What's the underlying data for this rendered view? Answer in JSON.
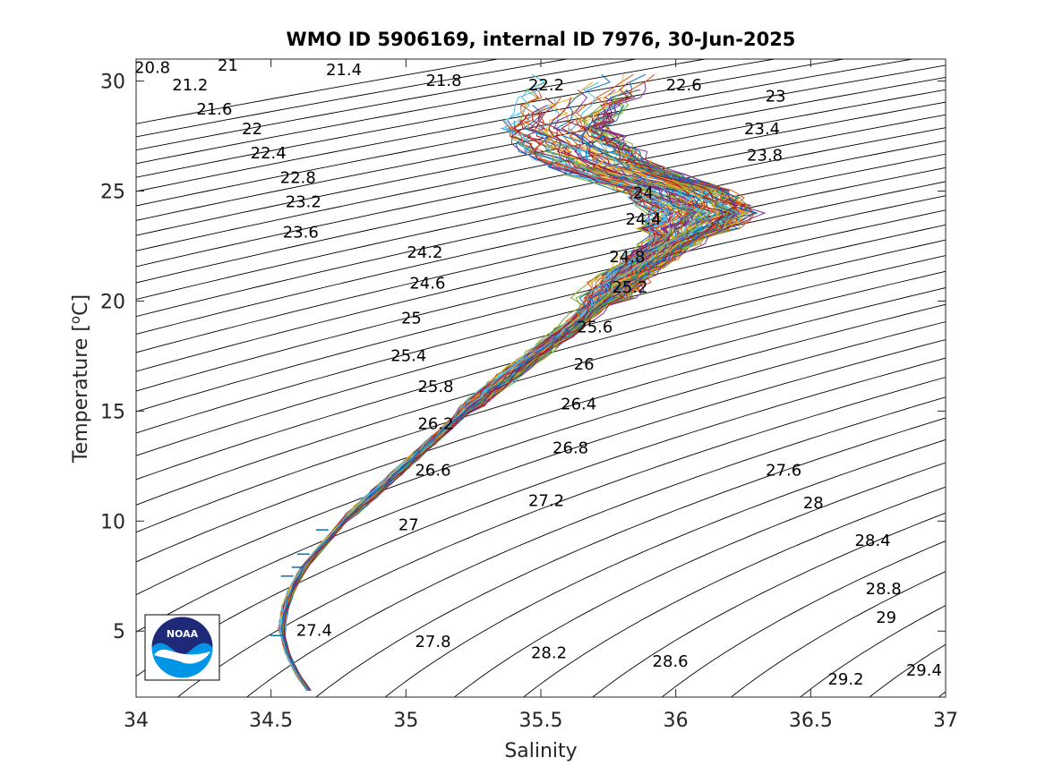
{
  "chart_data": {
    "type": "line",
    "title": "WMO ID 5906169, internal ID 7976, 30-Jun-2025",
    "xlabel": "Salinity",
    "ylabel_text": "Temperature [",
    "ylabel_sup": "o",
    "ylabel_unit": "C]",
    "xlim": [
      34,
      37
    ],
    "ylim": [
      2,
      31
    ],
    "x_ticks": [
      {
        "value": 34,
        "label": "34"
      },
      {
        "value": 34.5,
        "label": "34.5"
      },
      {
        "value": 35,
        "label": "35"
      },
      {
        "value": 35.5,
        "label": "35.5"
      },
      {
        "value": 36,
        "label": "36"
      },
      {
        "value": 36.5,
        "label": "36.5"
      },
      {
        "value": 37,
        "label": "37"
      }
    ],
    "y_ticks": [
      {
        "value": 5,
        "label": "5"
      },
      {
        "value": 10,
        "label": "10"
      },
      {
        "value": 15,
        "label": "15"
      },
      {
        "value": 20,
        "label": "20"
      },
      {
        "value": 25,
        "label": "25"
      },
      {
        "value": 30,
        "label": "30"
      }
    ],
    "grid": false,
    "contour_levels": {
      "start": 20.8,
      "end": 29.6,
      "step": 0.2
    },
    "contour_labels": [
      {
        "text": "20.8",
        "s": 34.06,
        "t": 30.6
      },
      {
        "text": "21",
        "s": 34.34,
        "t": 30.7
      },
      {
        "text": "21.4",
        "s": 34.77,
        "t": 30.5
      },
      {
        "text": "21.8",
        "s": 35.14,
        "t": 30.0
      },
      {
        "text": "22.2",
        "s": 35.52,
        "t": 29.8
      },
      {
        "text": "22.6",
        "s": 36.03,
        "t": 29.8
      },
      {
        "text": "23",
        "s": 36.37,
        "t": 29.3
      },
      {
        "text": "21.2",
        "s": 34.2,
        "t": 29.8
      },
      {
        "text": "21.6",
        "s": 34.29,
        "t": 28.7
      },
      {
        "text": "22",
        "s": 34.43,
        "t": 27.8
      },
      {
        "text": "23.4",
        "s": 36.32,
        "t": 27.8
      },
      {
        "text": "22.4",
        "s": 34.49,
        "t": 26.7
      },
      {
        "text": "23.8",
        "s": 36.33,
        "t": 26.6
      },
      {
        "text": "22.8",
        "s": 34.6,
        "t": 25.6
      },
      {
        "text": "23.2",
        "s": 34.62,
        "t": 24.5
      },
      {
        "text": "24",
        "s": 35.88,
        "t": 24.9
      },
      {
        "text": "23.6",
        "s": 34.61,
        "t": 23.1
      },
      {
        "text": "24.4",
        "s": 35.88,
        "t": 23.7
      },
      {
        "text": "24.2",
        "s": 35.07,
        "t": 22.2
      },
      {
        "text": "24.8",
        "s": 35.82,
        "t": 22.0
      },
      {
        "text": "24.6",
        "s": 35.08,
        "t": 20.8
      },
      {
        "text": "25.2",
        "s": 35.83,
        "t": 20.6
      },
      {
        "text": "25",
        "s": 35.02,
        "t": 19.2
      },
      {
        "text": "25.6",
        "s": 35.7,
        "t": 18.8
      },
      {
        "text": "25.4",
        "s": 35.01,
        "t": 17.5
      },
      {
        "text": "26",
        "s": 35.66,
        "t": 17.1
      },
      {
        "text": "25.8",
        "s": 35.11,
        "t": 16.1
      },
      {
        "text": "26.4",
        "s": 35.64,
        "t": 15.3
      },
      {
        "text": "26.2",
        "s": 35.11,
        "t": 14.4
      },
      {
        "text": "26.8",
        "s": 35.61,
        "t": 13.3
      },
      {
        "text": "26.6",
        "s": 35.1,
        "t": 12.3
      },
      {
        "text": "27.6",
        "s": 36.4,
        "t": 12.3
      },
      {
        "text": "27.2",
        "s": 35.52,
        "t": 10.9
      },
      {
        "text": "28",
        "s": 36.51,
        "t": 10.8
      },
      {
        "text": "27",
        "s": 35.01,
        "t": 9.8
      },
      {
        "text": "28.4",
        "s": 36.73,
        "t": 9.1
      },
      {
        "text": "28.8",
        "s": 36.77,
        "t": 6.9
      },
      {
        "text": "29",
        "s": 36.78,
        "t": 5.6
      },
      {
        "text": "27.4",
        "s": 34.66,
        "t": 5.0
      },
      {
        "text": "27.8",
        "s": 35.1,
        "t": 4.5
      },
      {
        "text": "28.2",
        "s": 35.53,
        "t": 4.0
      },
      {
        "text": "28.6",
        "s": 35.98,
        "t": 3.6
      },
      {
        "text": "29.2",
        "s": 36.63,
        "t": 2.8
      },
      {
        "text": "29.4",
        "s": 36.92,
        "t": 3.2
      }
    ],
    "profile_count": 120,
    "series_colors": [
      "#0072BD",
      "#D95319",
      "#EDB120",
      "#7E2F8E",
      "#77AC30",
      "#4DBEEE",
      "#A2142F"
    ],
    "profile_mean": {
      "t": [
        2.3,
        3,
        4,
        5,
        6,
        7,
        8,
        9,
        10,
        11,
        12,
        13,
        14,
        15,
        16,
        17,
        18,
        19,
        20,
        21,
        22,
        23,
        24,
        25,
        26,
        27,
        28,
        29,
        30
      ],
      "s": [
        34.64,
        34.6,
        34.56,
        34.54,
        34.55,
        34.58,
        34.63,
        34.7,
        34.77,
        34.86,
        34.95,
        35.04,
        35.13,
        35.22,
        35.32,
        35.42,
        35.53,
        35.63,
        35.72,
        35.8,
        35.9,
        36.02,
        36.1,
        36.0,
        35.75,
        35.62,
        35.55,
        35.6,
        35.7
      ]
    },
    "dash_markers": [
      {
        "s": 34.69,
        "t": 9.6
      },
      {
        "s": 34.62,
        "t": 8.5
      },
      {
        "s": 34.6,
        "t": 7.9
      },
      {
        "s": 34.56,
        "t": 7.5
      },
      {
        "s": 34.52,
        "t": 4.8
      }
    ]
  },
  "logo": {
    "text": "NOAA",
    "colors": {
      "navy": "#1E2A78",
      "sky": "#0095E6",
      "white": "#FFFFFF"
    }
  }
}
